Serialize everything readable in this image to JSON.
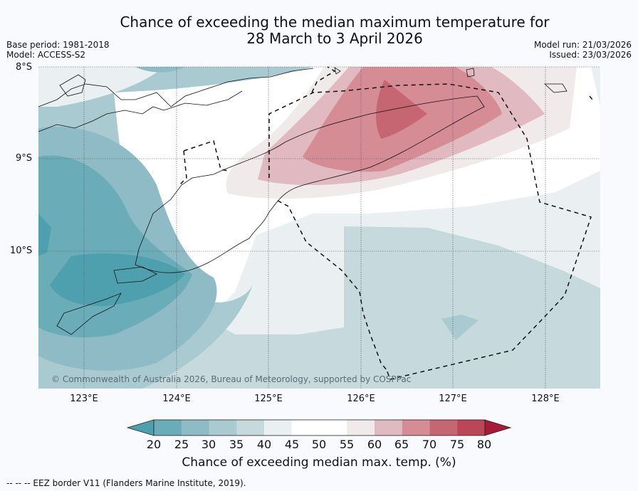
{
  "title": {
    "line1": "Chance of exceeding the median maximum temperature for",
    "line2": "28 March to 3 April 2026"
  },
  "meta": {
    "base_period": "Base period: 1981-2018",
    "model": "Model: ACCESS-S2",
    "model_run": "Model run: 21/03/2026",
    "issued": "Issued: 23/03/2026"
  },
  "map": {
    "lat_labels": [
      "8°S",
      "9°S",
      "10°S"
    ],
    "lon_labels": [
      "123°E",
      "124°E",
      "125°E",
      "126°E",
      "127°E",
      "128°E"
    ],
    "copyright": "© Commonwealth of Australia 2026, Bureau of Meteorology, supported by COSPPac"
  },
  "colorbar": {
    "ticks": [
      "20",
      "25",
      "30",
      "35",
      "40",
      "45",
      "50",
      "55",
      "60",
      "65",
      "70",
      "75",
      "80"
    ],
    "colors": [
      "#4fa0ae",
      "#6aadb9",
      "#8fbbc6",
      "#a9cad0",
      "#c6d9dc",
      "#eaf0f1",
      "#ffffff",
      "#ffffff",
      "#f0eaeb",
      "#e1b9c0",
      "#d58c95",
      "#c66673",
      "#bb4657",
      "#a81b38"
    ],
    "label": "Chance of exceeding median max. temp. (%)"
  },
  "legend_note": "--  --  -- EEZ border V11 (Flanders Marine Institute, 2019)."
}
